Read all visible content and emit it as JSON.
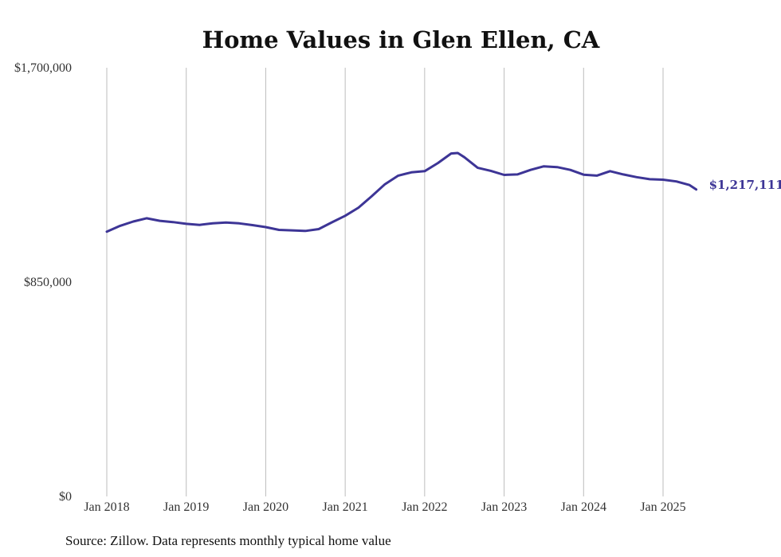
{
  "chart_data": {
    "type": "line",
    "title": "Home Values in Glen Ellen, CA",
    "xlabel": "",
    "ylabel": "",
    "ylim": [
      0,
      1700000
    ],
    "y_ticks": [
      {
        "value": 0,
        "label": "$0"
      },
      {
        "value": 850000,
        "label": "$850,000"
      },
      {
        "value": 1700000,
        "label": "$1,700,000"
      }
    ],
    "x_ticks": [
      {
        "value": 2018,
        "label": "Jan 2018"
      },
      {
        "value": 2019,
        "label": "Jan 2019"
      },
      {
        "value": 2020,
        "label": "Jan 2020"
      },
      {
        "value": 2021,
        "label": "Jan 2021"
      },
      {
        "value": 2022,
        "label": "Jan 2022"
      },
      {
        "value": 2023,
        "label": "Jan 2023"
      },
      {
        "value": 2024,
        "label": "Jan 2024"
      },
      {
        "value": 2025,
        "label": "Jan 2025"
      }
    ],
    "grid": "vertical",
    "series": [
      {
        "color": "#3d3596",
        "end_label": "$1,217,111",
        "points": [
          [
            2018.0,
            1050000
          ],
          [
            2018.167,
            1073000
          ],
          [
            2018.333,
            1090000
          ],
          [
            2018.5,
            1103000
          ],
          [
            2018.667,
            1093000
          ],
          [
            2018.833,
            1088000
          ],
          [
            2019.0,
            1081000
          ],
          [
            2019.167,
            1077000
          ],
          [
            2019.333,
            1083000
          ],
          [
            2019.5,
            1086000
          ],
          [
            2019.667,
            1083000
          ],
          [
            2019.833,
            1076000
          ],
          [
            2020.0,
            1068000
          ],
          [
            2020.167,
            1057000
          ],
          [
            2020.333,
            1055000
          ],
          [
            2020.5,
            1053000
          ],
          [
            2020.667,
            1060000
          ],
          [
            2020.833,
            1087000
          ],
          [
            2021.0,
            1113000
          ],
          [
            2021.167,
            1145000
          ],
          [
            2021.333,
            1190000
          ],
          [
            2021.5,
            1238000
          ],
          [
            2021.667,
            1272000
          ],
          [
            2021.833,
            1285000
          ],
          [
            2022.0,
            1290000
          ],
          [
            2022.167,
            1322000
          ],
          [
            2022.333,
            1360000
          ],
          [
            2022.417,
            1362000
          ],
          [
            2022.5,
            1345000
          ],
          [
            2022.667,
            1303000
          ],
          [
            2022.833,
            1291000
          ],
          [
            2023.0,
            1275000
          ],
          [
            2023.167,
            1277000
          ],
          [
            2023.333,
            1295000
          ],
          [
            2023.5,
            1309000
          ],
          [
            2023.667,
            1306000
          ],
          [
            2023.833,
            1295000
          ],
          [
            2024.0,
            1276000
          ],
          [
            2024.167,
            1272000
          ],
          [
            2024.333,
            1290000
          ],
          [
            2024.5,
            1277000
          ],
          [
            2024.667,
            1266000
          ],
          [
            2024.833,
            1258000
          ],
          [
            2025.0,
            1256000
          ],
          [
            2025.167,
            1249000
          ],
          [
            2025.333,
            1235000
          ],
          [
            2025.417,
            1217111
          ]
        ]
      }
    ]
  },
  "footer": {
    "source": "Source: Zillow. Data represents monthly typical home value"
  }
}
